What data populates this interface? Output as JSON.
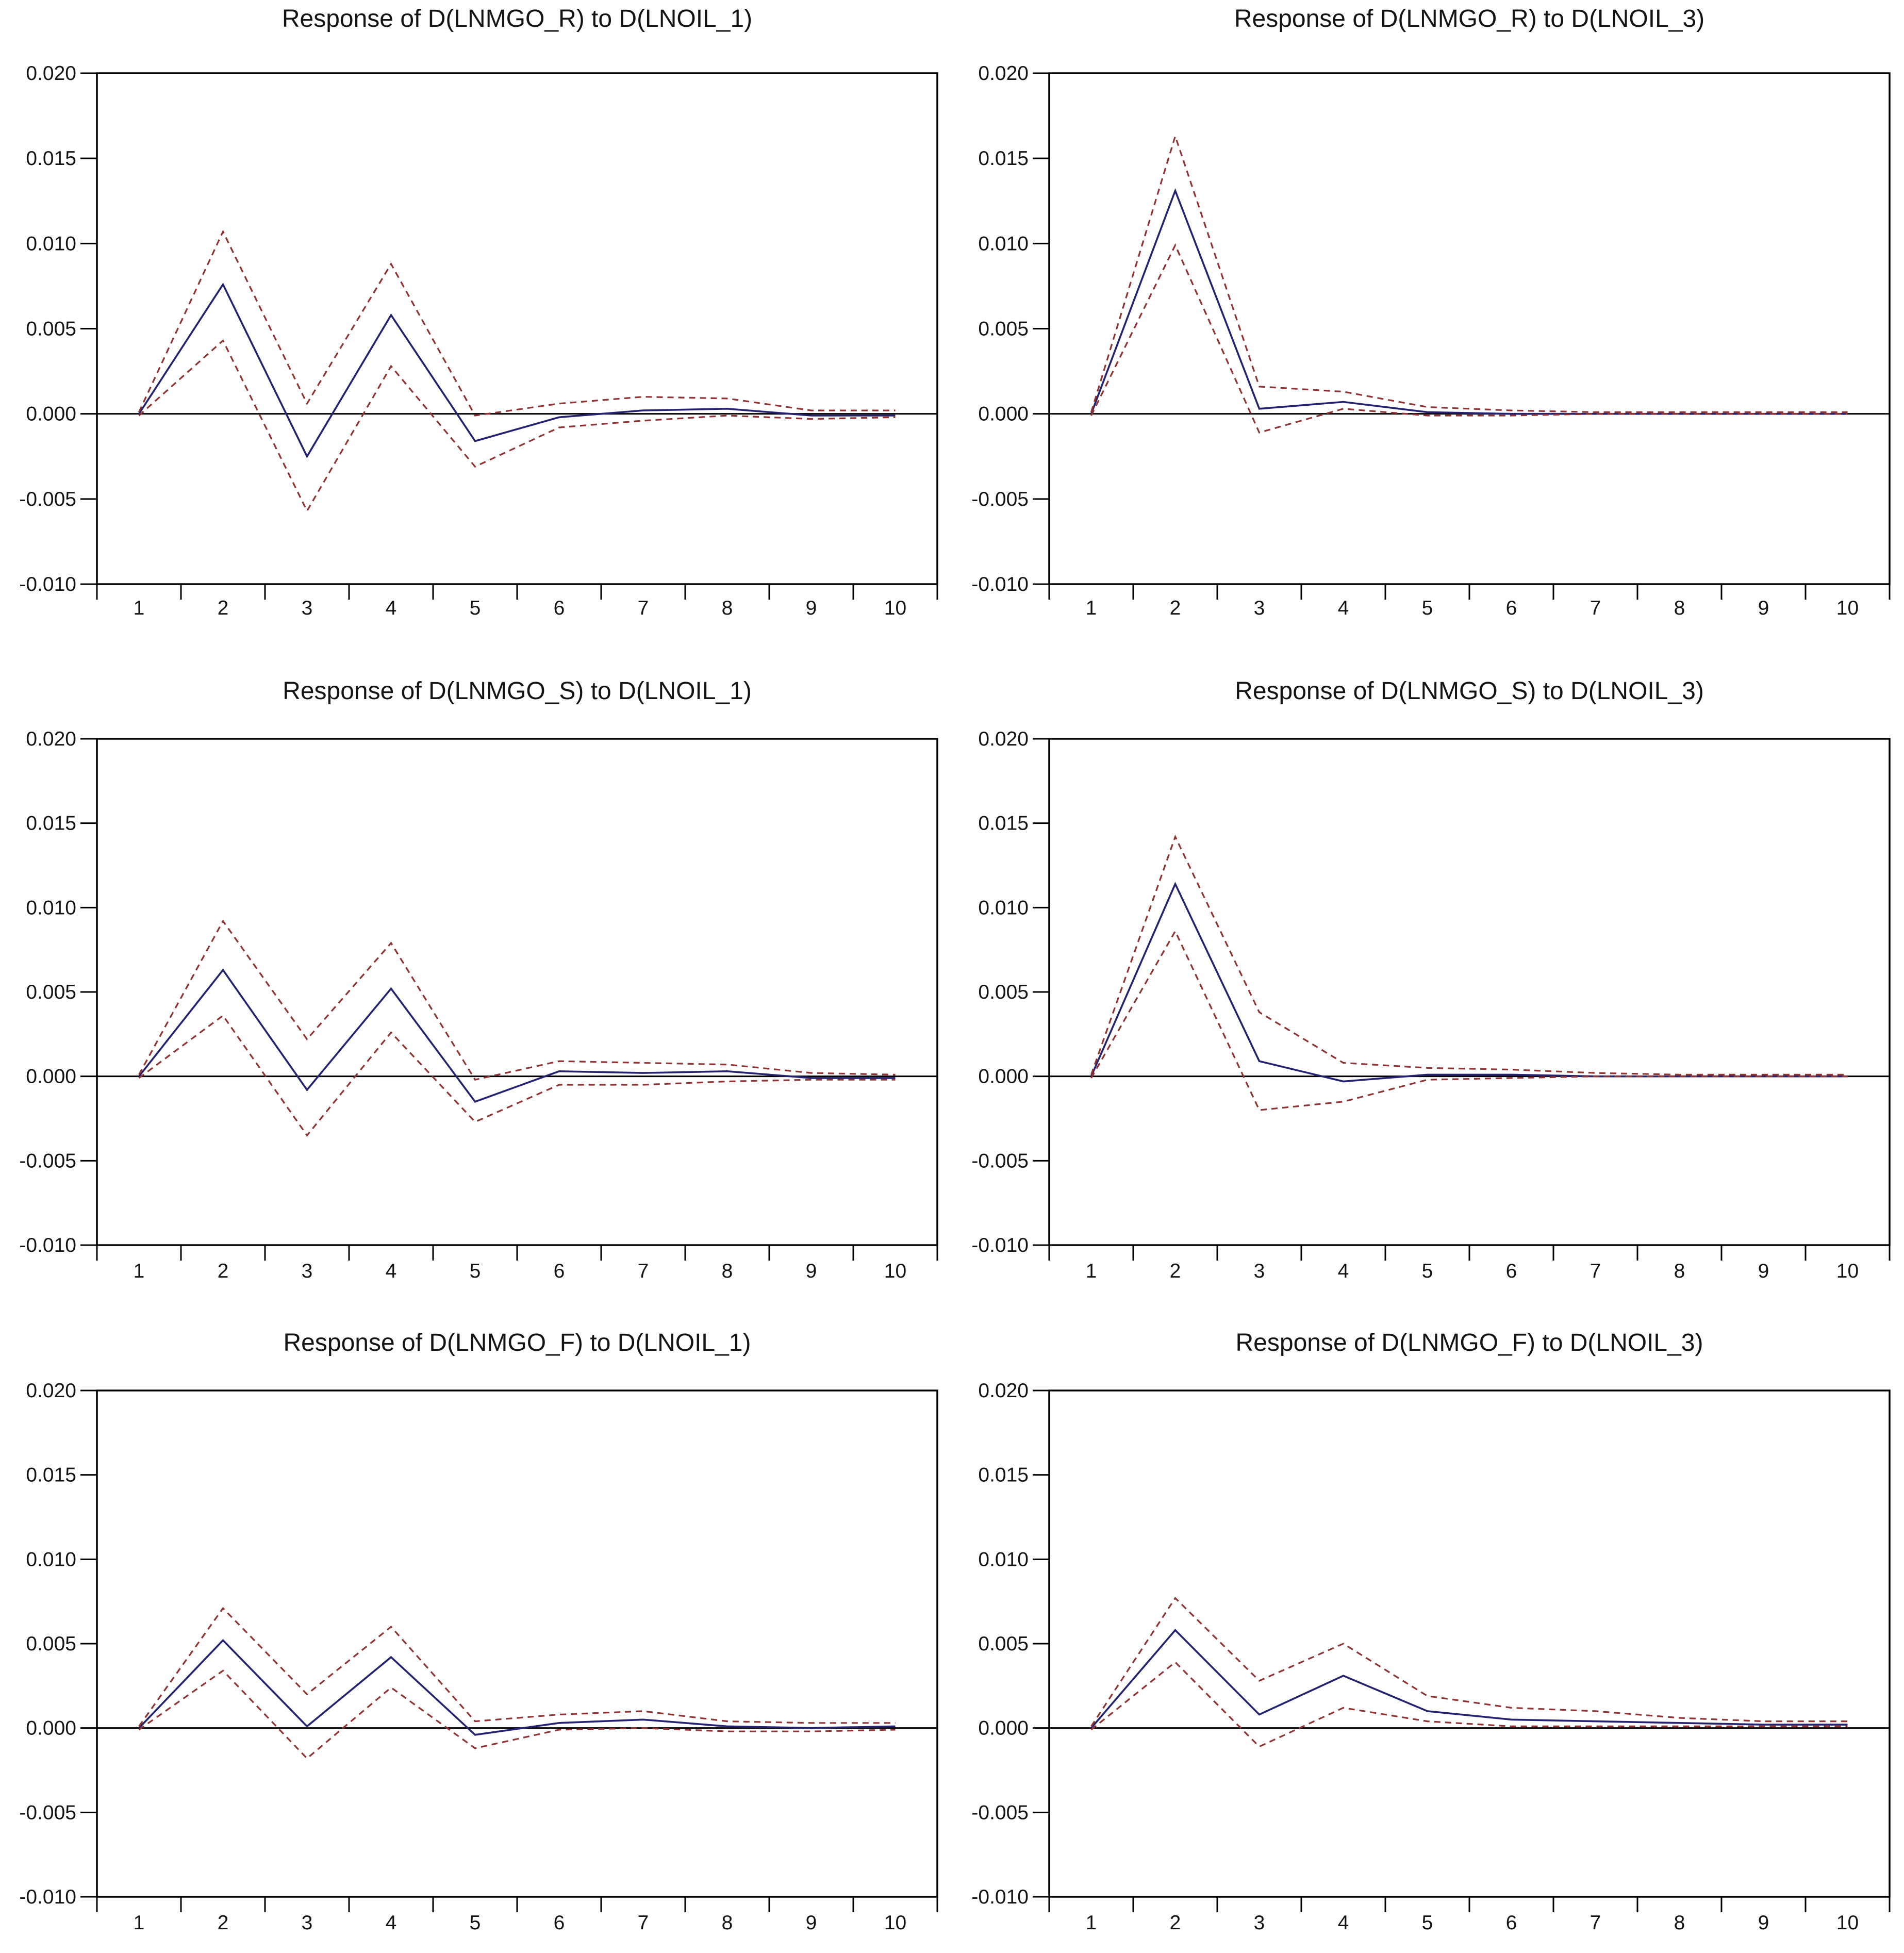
{
  "page": {
    "background": "#ffffff"
  },
  "colors": {
    "response_line": "#232370",
    "band_line": "#8f3333",
    "axis": "#000000",
    "text": "#141414"
  },
  "chart_data": [
    {
      "type": "line",
      "title": "Response of D(LNMGO_R) to D(LNOIL_1)",
      "x": [
        1,
        2,
        3,
        4,
        5,
        6,
        7,
        8,
        9,
        10
      ],
      "xtick_labels": [
        "1",
        "2",
        "3",
        "4",
        "5",
        "6",
        "7",
        "8",
        "9",
        "10"
      ],
      "ylim": [
        -0.01,
        0.02
      ],
      "yticks": [
        0.02,
        0.015,
        0.01,
        0.005,
        0.0,
        -0.005,
        -0.01
      ],
      "ytick_labels": [
        "0.020",
        "0.015",
        "0.010",
        "0.005",
        "0.000",
        "-0.005",
        "-0.010"
      ],
      "grid": false,
      "legend_position": "none",
      "series": [
        {
          "name": "response",
          "style": "solid",
          "color_key": "response_line",
          "values": [
            0.0,
            0.0076,
            -0.0025,
            0.0058,
            -0.0016,
            -0.0002,
            0.0002,
            0.0003,
            -0.0001,
            -0.0001
          ]
        },
        {
          "name": "upper_2se_band",
          "style": "dashed",
          "color_key": "band_line",
          "values": [
            0.0001,
            0.0107,
            0.0006,
            0.0088,
            -0.0001,
            0.0006,
            0.001,
            0.0009,
            0.0002,
            0.0002
          ]
        },
        {
          "name": "lower_2se_band",
          "style": "dashed",
          "color_key": "band_line",
          "values": [
            -0.0001,
            0.0043,
            -0.0057,
            0.0028,
            -0.0031,
            -0.0008,
            -0.0004,
            -0.0001,
            -0.0003,
            -0.0002
          ]
        }
      ]
    },
    {
      "type": "line",
      "title": "Response of D(LNMGO_R) to D(LNOIL_3)",
      "x": [
        1,
        2,
        3,
        4,
        5,
        6,
        7,
        8,
        9,
        10
      ],
      "xtick_labels": [
        "1",
        "2",
        "3",
        "4",
        "5",
        "6",
        "7",
        "8",
        "9",
        "10"
      ],
      "ylim": [
        -0.01,
        0.02
      ],
      "yticks": [
        0.02,
        0.015,
        0.01,
        0.005,
        0.0,
        -0.005,
        -0.01
      ],
      "ytick_labels": [
        "0.020",
        "0.015",
        "0.010",
        "0.005",
        "0.000",
        "-0.005",
        "-0.010"
      ],
      "grid": false,
      "legend_position": "none",
      "series": [
        {
          "name": "response",
          "style": "solid",
          "color_key": "response_line",
          "values": [
            0.0,
            0.0131,
            0.0003,
            0.0007,
            0.0001,
            0.0,
            0.0,
            0.0,
            0.0,
            0.0
          ]
        },
        {
          "name": "upper_2se_band",
          "style": "dashed",
          "color_key": "band_line",
          "values": [
            0.0001,
            0.0163,
            0.0016,
            0.0013,
            0.0004,
            0.0002,
            0.0001,
            0.0001,
            0.0001,
            0.0001
          ]
        },
        {
          "name": "lower_2se_band",
          "style": "dashed",
          "color_key": "band_line",
          "values": [
            -0.0001,
            0.0099,
            -0.0011,
            0.0003,
            -0.0001,
            -0.0001,
            0.0,
            0.0,
            0.0,
            0.0
          ]
        }
      ]
    },
    {
      "type": "line",
      "title": "Response of D(LNMGO_S) to D(LNOIL_1)",
      "x": [
        1,
        2,
        3,
        4,
        5,
        6,
        7,
        8,
        9,
        10
      ],
      "xtick_labels": [
        "1",
        "2",
        "3",
        "4",
        "5",
        "6",
        "7",
        "8",
        "9",
        "10"
      ],
      "ylim": [
        -0.01,
        0.02
      ],
      "yticks": [
        0.02,
        0.015,
        0.01,
        0.005,
        0.0,
        -0.005,
        -0.01
      ],
      "ytick_labels": [
        "0.020",
        "0.015",
        "0.010",
        "0.005",
        "0.000",
        "-0.005",
        "-0.010"
      ],
      "grid": false,
      "legend_position": "none",
      "series": [
        {
          "name": "response",
          "style": "solid",
          "color_key": "response_line",
          "values": [
            0.0,
            0.0063,
            -0.0008,
            0.0052,
            -0.0015,
            0.0003,
            0.0002,
            0.0003,
            -0.0001,
            -0.0001
          ]
        },
        {
          "name": "upper_2se_band",
          "style": "dashed",
          "color_key": "band_line",
          "values": [
            0.0001,
            0.0092,
            0.0022,
            0.0079,
            -0.0002,
            0.0009,
            0.0008,
            0.0007,
            0.0002,
            0.0001
          ]
        },
        {
          "name": "lower_2se_band",
          "style": "dashed",
          "color_key": "band_line",
          "values": [
            -0.0001,
            0.0036,
            -0.0035,
            0.0026,
            -0.0027,
            -0.0005,
            -0.0005,
            -0.0003,
            -0.0002,
            -0.0002
          ]
        }
      ]
    },
    {
      "type": "line",
      "title": "Response of D(LNMGO_S) to D(LNOIL_3)",
      "x": [
        1,
        2,
        3,
        4,
        5,
        6,
        7,
        8,
        9,
        10
      ],
      "xtick_labels": [
        "1",
        "2",
        "3",
        "4",
        "5",
        "6",
        "7",
        "8",
        "9",
        "10"
      ],
      "ylim": [
        -0.01,
        0.02
      ],
      "yticks": [
        0.02,
        0.015,
        0.01,
        0.005,
        0.0,
        -0.005,
        -0.01
      ],
      "ytick_labels": [
        "0.020",
        "0.015",
        "0.010",
        "0.005",
        "0.000",
        "-0.005",
        "-0.010"
      ],
      "grid": false,
      "legend_position": "none",
      "series": [
        {
          "name": "response",
          "style": "solid",
          "color_key": "response_line",
          "values": [
            0.0,
            0.0114,
            0.0009,
            -0.0003,
            0.0001,
            0.0001,
            0.0,
            0.0,
            0.0,
            0.0
          ]
        },
        {
          "name": "upper_2se_band",
          "style": "dashed",
          "color_key": "band_line",
          "values": [
            0.0001,
            0.0142,
            0.0038,
            0.0008,
            0.0005,
            0.0004,
            0.0002,
            0.0001,
            0.0001,
            0.0001
          ]
        },
        {
          "name": "lower_2se_band",
          "style": "dashed",
          "color_key": "band_line",
          "values": [
            -0.0001,
            0.0086,
            -0.002,
            -0.0015,
            -0.0002,
            -0.0001,
            0.0,
            0.0,
            0.0,
            0.0
          ]
        }
      ]
    },
    {
      "type": "line",
      "title": "Response of D(LNMGO_F) to D(LNOIL_1)",
      "x": [
        1,
        2,
        3,
        4,
        5,
        6,
        7,
        8,
        9,
        10
      ],
      "xtick_labels": [
        "1",
        "2",
        "3",
        "4",
        "5",
        "6",
        "7",
        "8",
        "9",
        "10"
      ],
      "ylim": [
        -0.01,
        0.02
      ],
      "yticks": [
        0.02,
        0.015,
        0.01,
        0.005,
        0.0,
        -0.005,
        -0.01
      ],
      "ytick_labels": [
        "0.020",
        "0.015",
        "0.010",
        "0.005",
        "0.000",
        "-0.005",
        "-0.010"
      ],
      "grid": false,
      "legend_position": "none",
      "series": [
        {
          "name": "response",
          "style": "solid",
          "color_key": "response_line",
          "values": [
            0.0,
            0.0052,
            0.0001,
            0.0042,
            -0.0004,
            0.0003,
            0.0005,
            0.0001,
            0.0,
            0.0001
          ]
        },
        {
          "name": "upper_2se_band",
          "style": "dashed",
          "color_key": "band_line",
          "values": [
            0.0001,
            0.0071,
            0.002,
            0.006,
            0.0004,
            0.0008,
            0.001,
            0.0004,
            0.0003,
            0.0003
          ]
        },
        {
          "name": "lower_2se_band",
          "style": "dashed",
          "color_key": "band_line",
          "values": [
            -0.0001,
            0.0034,
            -0.0018,
            0.0024,
            -0.0012,
            -0.0001,
            0.0,
            -0.0002,
            -0.0002,
            -0.0001
          ]
        }
      ]
    },
    {
      "type": "line",
      "title": "Response of D(LNMGO_F) to D(LNOIL_3)",
      "x": [
        1,
        2,
        3,
        4,
        5,
        6,
        7,
        8,
        9,
        10
      ],
      "xtick_labels": [
        "1",
        "2",
        "3",
        "4",
        "5",
        "6",
        "7",
        "8",
        "9",
        "10"
      ],
      "ylim": [
        -0.01,
        0.02
      ],
      "yticks": [
        0.02,
        0.015,
        0.01,
        0.005,
        0.0,
        -0.005,
        -0.01
      ],
      "ytick_labels": [
        "0.020",
        "0.015",
        "0.010",
        "0.005",
        "0.000",
        "-0.005",
        "-0.010"
      ],
      "grid": false,
      "legend_position": "none",
      "series": [
        {
          "name": "response",
          "style": "solid",
          "color_key": "response_line",
          "values": [
            0.0,
            0.0058,
            0.0008,
            0.0031,
            0.001,
            0.0005,
            0.0004,
            0.0003,
            0.0002,
            0.0002
          ]
        },
        {
          "name": "upper_2se_band",
          "style": "dashed",
          "color_key": "band_line",
          "values": [
            0.0001,
            0.0077,
            0.0028,
            0.005,
            0.0019,
            0.0012,
            0.001,
            0.0006,
            0.0004,
            0.0004
          ]
        },
        {
          "name": "lower_2se_band",
          "style": "dashed",
          "color_key": "band_line",
          "values": [
            -0.0001,
            0.0039,
            -0.0011,
            0.0012,
            0.0004,
            0.0001,
            0.0001,
            0.0001,
            0.0001,
            0.0001
          ]
        }
      ]
    }
  ]
}
